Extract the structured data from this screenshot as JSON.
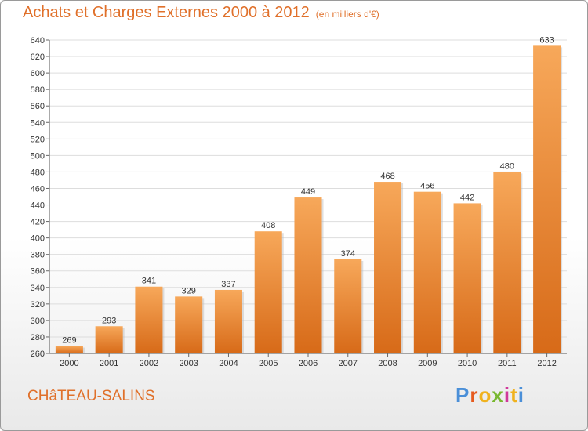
{
  "header": {
    "title": "Achats et Charges Externes 2000 à 2012",
    "unit": "(en milliers d'€)"
  },
  "footer": {
    "town": "CHâTEAU-SALINS",
    "logo_text": "Proxiti",
    "logo_colors": [
      "#4a8fd8",
      "#e65a1e",
      "#f0b21e",
      "#79b830",
      "#d0389a",
      "#f0b21e",
      "#4a8fd8"
    ]
  },
  "colors": {
    "accent": "#e0702a",
    "bar_top": "#f7a85a",
    "bar_bottom": "#d76a18",
    "grid": "#dddddd"
  },
  "chart_data": {
    "type": "bar",
    "title": "Achats et Charges Externes 2000 à 2012",
    "categories": [
      "2000",
      "2001",
      "2002",
      "2003",
      "2004",
      "2005",
      "2006",
      "2007",
      "2008",
      "2009",
      "2010",
      "2011",
      "2012"
    ],
    "values": [
      269,
      293,
      341,
      329,
      337,
      408,
      449,
      374,
      468,
      456,
      442,
      480,
      633
    ],
    "ylim": [
      260,
      640
    ],
    "yticks": [
      260,
      280,
      300,
      320,
      340,
      360,
      380,
      400,
      420,
      440,
      460,
      480,
      500,
      520,
      540,
      560,
      580,
      600,
      620,
      640
    ],
    "grid": true,
    "xlabel": "",
    "ylabel": ""
  }
}
